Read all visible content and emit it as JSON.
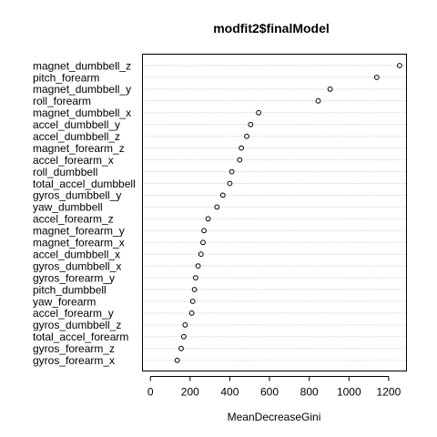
{
  "chart_data": {
    "type": "dotchart",
    "title": "modfit2$finalModel",
    "xlabel": "MeanDecreaseGini",
    "ylabel": "",
    "xlim": [
      -40,
      1290
    ],
    "xticks": [
      0,
      200,
      400,
      600,
      800,
      1000,
      1200
    ],
    "grid": "dotted horizontal lines per category",
    "categories": [
      "magnet_dumbbell_z",
      "pitch_forearm",
      "magnet_dumbbell_y",
      "roll_forearm",
      "magnet_dumbbell_x",
      "accel_dumbbell_y",
      "accel_dumbbell_z",
      "magnet_forearm_z",
      "accel_forearm_x",
      "roll_dumbbell",
      "total_accel_dumbbell",
      "gyros_dumbbell_y",
      "yaw_dumbbell",
      "accel_forearm_z",
      "magnet_forearm_y",
      "magnet_forearm_x",
      "accel_dumbbell_x",
      "gyros_dumbbell_x",
      "gyros_forearm_y",
      "pitch_dumbbell",
      "yaw_forearm",
      "accel_forearm_y",
      "gyros_dumbbell_z",
      "total_accel_forearm",
      "gyros_forearm_z",
      "gyros_forearm_x"
    ],
    "values": [
      1255,
      1140,
      905,
      845,
      545,
      505,
      485,
      458,
      450,
      410,
      400,
      365,
      335,
      290,
      270,
      265,
      255,
      240,
      228,
      222,
      213,
      208,
      175,
      168,
      155,
      135
    ]
  }
}
